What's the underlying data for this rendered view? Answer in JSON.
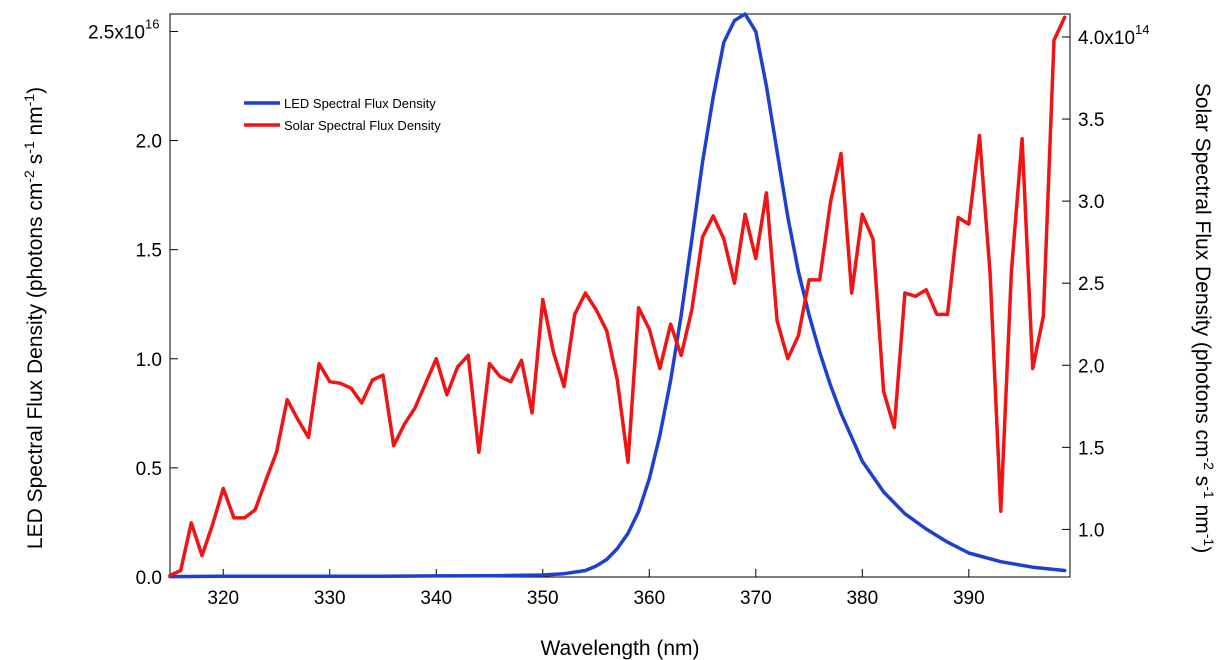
{
  "chart_data": {
    "type": "line",
    "title": "",
    "xlabel": "Wavelength (nm)",
    "ylabel_left": "LED Spectral Flux Density (photons cm-2 s-1 nm-1)",
    "ylabel_right": "Solar Spectral Flux Density (photons cm-2 s-1 nm-1)",
    "xlim": [
      315,
      399.5
    ],
    "ylim_left": [
      0,
      2.58e+16
    ],
    "ylim_right": [
      71000000000000.0,
      414000000000000.0
    ],
    "grid": false,
    "legend_position": "top-left",
    "x_ticks": [
      320,
      330,
      340,
      350,
      360,
      370,
      380,
      390
    ],
    "x_tick_labels": [
      "320",
      "330",
      "340",
      "350",
      "360",
      "370",
      "380",
      "390"
    ],
    "y_left_ticks": [
      0,
      5000000000000000.0,
      1e+16,
      1.5e+16,
      2e+16,
      2.5e+16
    ],
    "y_left_tick_labels": [
      "0.0",
      "0.5",
      "1.0",
      "1.5",
      "2.0",
      "2.5x10"
    ],
    "y_left_exponent": "16",
    "y_right_ticks": [
      100000000000000.0,
      150000000000000.0,
      200000000000000.0,
      250000000000000.0,
      300000000000000.0,
      350000000000000.0,
      400000000000000.0
    ],
    "y_right_tick_labels": [
      "1.0",
      "1.5",
      "2.0",
      "2.5",
      "3.0",
      "3.5",
      "4.0x10"
    ],
    "y_right_exponent": "14",
    "series": [
      {
        "name": "LED Spectral Flux Density",
        "axis": "left",
        "color": "#1f3fcf",
        "x": [
          315,
          320,
          325,
          330,
          335,
          340,
          345,
          350,
          352,
          354,
          355,
          356,
          357,
          358,
          359,
          360,
          361,
          362,
          363,
          364,
          365,
          366,
          367,
          368,
          369,
          370,
          371,
          372,
          373,
          374,
          375,
          376,
          377,
          378,
          379,
          380,
          382,
          384,
          386,
          388,
          390,
          393,
          396,
          399
        ],
        "y": [
          20000000000000.0,
          30000000000000.0,
          30000000000000.0,
          30000000000000.0,
          30000000000000.0,
          50000000000000.0,
          60000000000000.0,
          90000000000000.0,
          150000000000000.0,
          300000000000000.0,
          500000000000000.0,
          800000000000000.0,
          1300000000000000.0,
          2000000000000000.0,
          3000000000000000.0,
          4500000000000000.0,
          6500000000000000.0,
          9000000000000000.0,
          1.2e+16,
          1.55e+16,
          1.9e+16,
          2.2e+16,
          2.45e+16,
          2.55e+16,
          2.58e+16,
          2.5e+16,
          2.25e+16,
          1.95e+16,
          1.65e+16,
          1.4e+16,
          1.2e+16,
          1.03e+16,
          8800000000000000.0,
          7500000000000000.0,
          6400000000000000.0,
          5300000000000000.0,
          3900000000000000.0,
          2900000000000000.0,
          2200000000000000.0,
          1600000000000000.0,
          1100000000000000.0,
          700000000000000.0,
          450000000000000.0,
          300000000000000.0
        ]
      },
      {
        "name": "Solar Spectral Flux Density",
        "axis": "right",
        "color": "#f01414",
        "x": [
          315,
          316,
          317,
          318,
          319,
          320,
          321,
          322,
          323,
          324,
          325,
          326,
          327,
          328,
          329,
          330,
          331,
          332,
          333,
          334,
          335,
          336,
          337,
          338,
          339,
          340,
          341,
          342,
          343,
          344,
          345,
          346,
          347,
          348,
          349,
          350,
          351,
          352,
          353,
          354,
          355,
          356,
          357,
          358,
          359,
          360,
          361,
          362,
          363,
          364,
          365,
          366,
          367,
          368,
          369,
          370,
          371,
          372,
          373,
          374,
          375,
          376,
          377,
          378,
          379,
          380,
          381,
          382,
          383,
          384,
          385,
          386,
          387,
          388,
          389,
          390,
          391,
          392,
          393,
          394,
          395,
          396,
          397,
          398,
          399
        ],
        "y": [
          72000000000000.0,
          75000000000000.0,
          104000000000000.0,
          84000000000000.0,
          103000000000000.0,
          125000000000000.0,
          107000000000000.0,
          107000000000000.0,
          112000000000000.0,
          130000000000000.0,
          147000000000000.0,
          179000000000000.0,
          167000000000000.0,
          156000000000000.0,
          201000000000000.0,
          190000000000000.0,
          189000000000000.0,
          186000000000000.0,
          177000000000000.0,
          191000000000000.0,
          194000000000000.0,
          151000000000000.0,
          164000000000000.0,
          174000000000000.0,
          189000000000000.0,
          204000000000000.0,
          182000000000000.0,
          199000000000000.0,
          206000000000000.0,
          147000000000000.0,
          201000000000000.0,
          193000000000000.0,
          190000000000000.0,
          203000000000000.0,
          171000000000000.0,
          240000000000000.0,
          208000000000000.0,
          187000000000000.0,
          231000000000000.0,
          244000000000000.0,
          234000000000000.0,
          221000000000000.0,
          191000000000000.0,
          141000000000000.0,
          235000000000000.0,
          222000000000000.0,
          198000000000000.0,
          225000000000000.0,
          206000000000000.0,
          234000000000000.0,
          278000000000000.0,
          291000000000000.0,
          277000000000000.0,
          250000000000000.0,
          292000000000000.0,
          265000000000000.0,
          305000000000000.0,
          227000000000000.0,
          204000000000000.0,
          218000000000000.0,
          252000000000000.0,
          252000000000000.0,
          299000000000000.0,
          329000000000000.0,
          244000000000000.0,
          292000000000000.0,
          277000000000000.0,
          184000000000000.0,
          162000000000000.0,
          244000000000000.0,
          242000000000000.0,
          246000000000000.0,
          231000000000000.0,
          231000000000000.0,
          290000000000000.0,
          286000000000000.0,
          340000000000000.0,
          256000000000000.0,
          111000000000000.0,
          257000000000000.0,
          338000000000000.0,
          198000000000000.0,
          230000000000000.0,
          398000000000000.0,
          412000000000000.0
        ]
      }
    ]
  }
}
